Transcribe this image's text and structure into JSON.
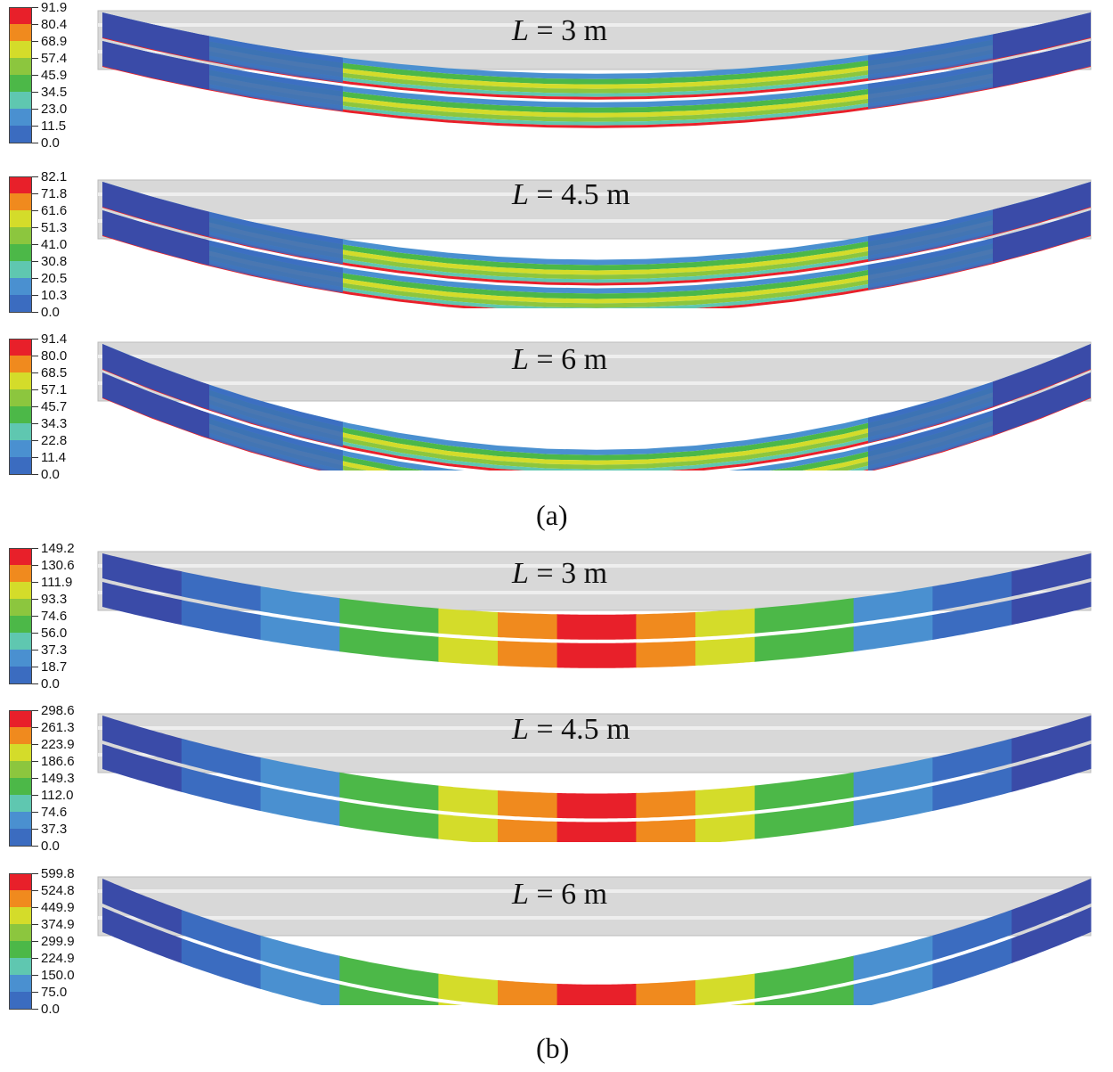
{
  "figure": {
    "caption_a": "(a)",
    "caption_b": "(b)",
    "panels": [
      {
        "group": "a",
        "case_var": "L",
        "case_rest": " = 3 m",
        "legend": [
          "91.9",
          "80.4",
          "68.9",
          "57.4",
          "45.9",
          "34.5",
          "23.0",
          "11.5",
          "0.0"
        ],
        "sag": 0.55,
        "pattern": "stripes"
      },
      {
        "group": "a",
        "case_var": "L",
        "case_rest": " = 4.5 m",
        "legend": [
          "82.1",
          "71.8",
          "61.6",
          "51.3",
          "41.0",
          "30.8",
          "20.5",
          "10.3",
          "0.0"
        ],
        "sag": 0.7,
        "pattern": "stripes"
      },
      {
        "group": "a",
        "case_var": "L",
        "case_rest": " = 6 m",
        "legend": [
          "91.4",
          "80.0",
          "68.5",
          "57.1",
          "45.7",
          "34.3",
          "22.8",
          "11.4",
          "0.0"
        ],
        "sag": 0.95,
        "pattern": "stripes"
      },
      {
        "group": "b",
        "case_var": "L",
        "case_rest": " = 3 m",
        "legend": [
          "149.2",
          "130.6",
          "111.9",
          "93.3",
          "74.6",
          "56.0",
          "37.3",
          "18.7",
          "0.0"
        ],
        "sag": 0.55,
        "pattern": "bands"
      },
      {
        "group": "b",
        "case_var": "L",
        "case_rest": " = 4.5 m",
        "legend": [
          "298.6",
          "261.3",
          "223.9",
          "186.6",
          "149.3",
          "112.0",
          "74.6",
          "37.3",
          "0.0"
        ],
        "sag": 0.7,
        "pattern": "bands"
      },
      {
        "group": "b",
        "case_var": "L",
        "case_rest": " = 6 m",
        "legend": [
          "599.8",
          "524.8",
          "449.9",
          "374.9",
          "299.9",
          "224.9",
          "150.0",
          "75.0",
          "0.0"
        ],
        "sag": 0.95,
        "pattern": "bands"
      }
    ],
    "colors": [
      "#e8202a",
      "#f08a1e",
      "#d4dc2a",
      "#8cc63e",
      "#4cb848",
      "#5fc7b0",
      "#4a90d0",
      "#3b6cc0",
      "#3a4ba8"
    ],
    "reference_color": "#d8d8d8"
  }
}
